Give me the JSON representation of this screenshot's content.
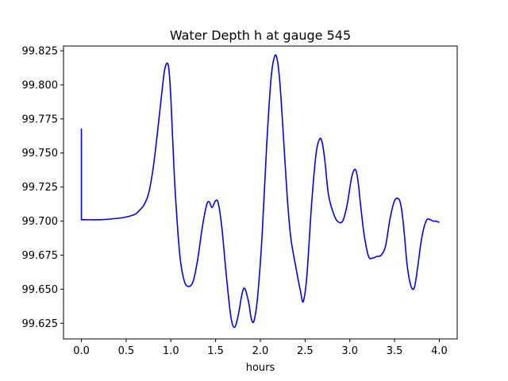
{
  "chart_data": {
    "type": "line",
    "title": "Water Depth h at gauge 545",
    "xlabel": "hours",
    "ylabel": "",
    "xlim": [
      -0.2,
      4.2
    ],
    "ylim": [
      99.6135,
      99.8285
    ],
    "xticks": [
      0.0,
      0.5,
      1.0,
      1.5,
      2.0,
      2.5,
      3.0,
      3.5,
      4.0
    ],
    "xtick_labels": [
      "0.0",
      "0.5",
      "1.0",
      "1.5",
      "2.0",
      "2.5",
      "3.0",
      "3.5",
      "4.0"
    ],
    "yticks": [
      99.625,
      99.65,
      99.675,
      99.7,
      99.725,
      99.75,
      99.775,
      99.8,
      99.825
    ],
    "ytick_labels": [
      "99.625",
      "99.650",
      "99.675",
      "99.700",
      "99.725",
      "99.750",
      "99.775",
      "99.800",
      "99.825"
    ],
    "grid": false,
    "legend": "none",
    "line_color": "#0000ff",
    "series": [
      {
        "x": [
          0.0,
          0.0,
          0.05,
          0.2,
          0.4,
          0.5,
          0.6,
          0.65,
          0.7,
          0.75,
          0.8,
          0.85,
          0.9,
          0.93,
          0.96,
          0.98,
          1.0,
          1.02,
          1.05,
          1.1,
          1.15,
          1.2,
          1.25,
          1.3,
          1.35,
          1.4,
          1.43,
          1.46,
          1.5,
          1.53,
          1.57,
          1.62,
          1.67,
          1.71,
          1.75,
          1.8,
          1.83,
          1.87,
          1.9,
          1.93,
          1.97,
          2.02,
          2.07,
          2.12,
          2.16,
          2.19,
          2.22,
          2.26,
          2.3,
          2.34,
          2.4,
          2.45,
          2.48,
          2.52,
          2.57,
          2.62,
          2.66,
          2.69,
          2.72,
          2.76,
          2.81,
          2.86,
          2.92,
          2.97,
          3.02,
          3.06,
          3.09,
          3.12,
          3.16,
          3.21,
          3.26,
          3.3,
          3.35,
          3.4,
          3.45,
          3.5,
          3.55,
          3.58,
          3.61,
          3.64,
          3.68,
          3.72,
          3.76,
          3.79,
          3.82,
          3.86,
          3.9,
          3.93,
          3.96,
          4.0
        ],
        "y": [
          99.768,
          99.701,
          99.701,
          99.701,
          99.702,
          99.703,
          99.705,
          99.708,
          99.712,
          99.72,
          99.738,
          99.765,
          99.795,
          99.811,
          99.816,
          99.81,
          99.79,
          99.76,
          99.72,
          99.675,
          99.656,
          99.652,
          99.656,
          99.672,
          99.695,
          99.712,
          99.714,
          99.71,
          99.715,
          99.713,
          99.695,
          99.66,
          99.63,
          99.622,
          99.63,
          99.648,
          99.65,
          99.64,
          99.628,
          99.627,
          99.645,
          99.69,
          99.755,
          99.805,
          99.821,
          99.818,
          99.8,
          99.76,
          99.718,
          99.688,
          99.665,
          99.648,
          99.641,
          99.66,
          99.71,
          99.748,
          99.76,
          99.758,
          99.745,
          99.72,
          99.707,
          99.7,
          99.7,
          99.712,
          99.732,
          99.738,
          99.73,
          99.712,
          99.69,
          99.674,
          99.673,
          99.674,
          99.675,
          99.682,
          99.702,
          99.715,
          99.716,
          99.708,
          99.69,
          99.668,
          99.653,
          99.651,
          99.667,
          99.682,
          99.693,
          99.701,
          99.701,
          99.7,
          99.7,
          99.699
        ]
      }
    ]
  }
}
